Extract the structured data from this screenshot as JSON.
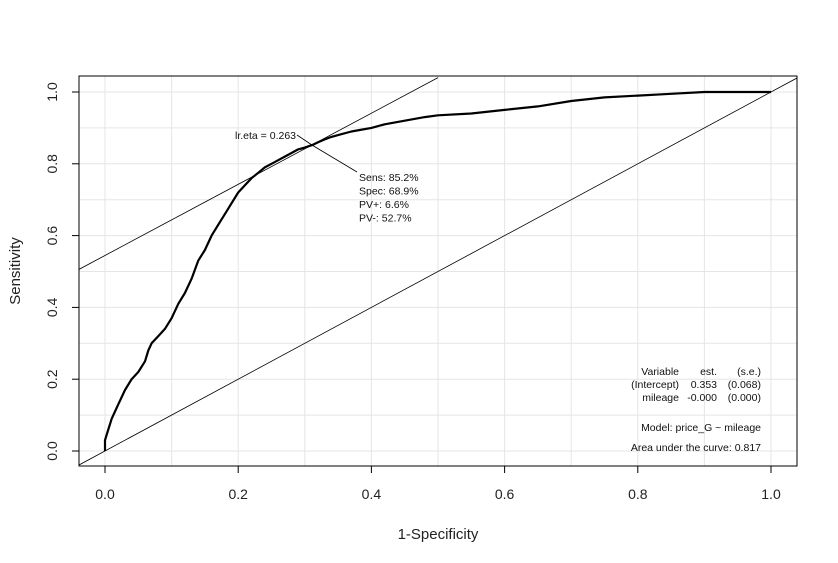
{
  "chart_data": {
    "type": "line",
    "xlabel": "1-Specificity",
    "ylabel": "Sensitivity",
    "xlim": [
      0,
      1
    ],
    "ylim": [
      0,
      1
    ],
    "grid": true,
    "x_ticks": [
      "0.0",
      "0.2",
      "0.4",
      "0.6",
      "0.8",
      "1.0"
    ],
    "y_ticks": [
      "0.0",
      "0.2",
      "0.4",
      "0.6",
      "0.8",
      "1.0"
    ],
    "roc_curve": {
      "x": [
        0.0,
        0.0,
        0.005,
        0.01,
        0.015,
        0.02,
        0.03,
        0.04,
        0.05,
        0.06,
        0.065,
        0.07,
        0.08,
        0.09,
        0.1,
        0.11,
        0.12,
        0.13,
        0.14,
        0.15,
        0.16,
        0.17,
        0.18,
        0.19,
        0.2,
        0.21,
        0.22,
        0.23,
        0.24,
        0.25,
        0.26,
        0.27,
        0.28,
        0.29,
        0.3,
        0.311,
        0.32,
        0.33,
        0.34,
        0.35,
        0.37,
        0.4,
        0.42,
        0.45,
        0.48,
        0.5,
        0.55,
        0.6,
        0.65,
        0.7,
        0.75,
        0.8,
        0.85,
        0.9,
        0.95,
        1.0
      ],
      "y": [
        0.0,
        0.03,
        0.06,
        0.09,
        0.11,
        0.13,
        0.17,
        0.2,
        0.22,
        0.25,
        0.28,
        0.3,
        0.32,
        0.34,
        0.37,
        0.41,
        0.44,
        0.48,
        0.53,
        0.56,
        0.6,
        0.63,
        0.66,
        0.69,
        0.72,
        0.74,
        0.76,
        0.775,
        0.79,
        0.8,
        0.81,
        0.82,
        0.83,
        0.84,
        0.845,
        0.852,
        0.86,
        0.868,
        0.875,
        0.88,
        0.89,
        0.9,
        0.91,
        0.92,
        0.93,
        0.935,
        0.94,
        0.95,
        0.96,
        0.975,
        0.985,
        0.99,
        0.995,
        1.0,
        1.0,
        1.0
      ]
    },
    "diagonal": {
      "x": [
        0,
        1
      ],
      "y": [
        0,
        1
      ]
    },
    "tangent_line": {
      "x": [
        -0.04,
        0.5
      ],
      "y": [
        0.505,
        1.04
      ]
    },
    "optimal_point": {
      "x": 0.311,
      "y": 0.852
    },
    "cutoff_label": "lr.eta = 0.263",
    "point_stats": [
      "Sens: 85.2%",
      "Spec: 68.9%",
      "PV+: 6.6%",
      "PV-: 52.7%"
    ],
    "model_table": {
      "header": [
        "Variable",
        "est.",
        "(s.e.)"
      ],
      "rows": [
        [
          "(Intercept)",
          "0.353",
          "(0.068)"
        ],
        [
          "mileage",
          "-0.000",
          "(0.000)"
        ]
      ]
    },
    "model_formula": "Model:  price_G ~ mileage",
    "auc_text": "Area under the curve: 0.817",
    "colors": {
      "curve": "#000000",
      "grid": "#e5e5e5",
      "frame": "#000000"
    }
  }
}
